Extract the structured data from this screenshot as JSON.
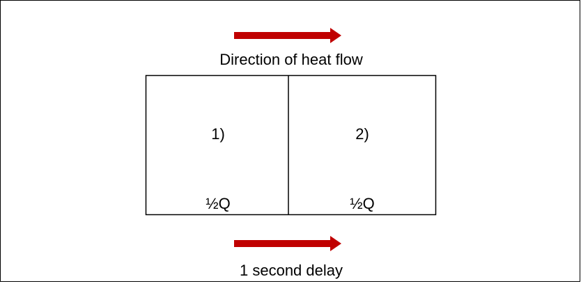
{
  "top_label": "Direction of heat flow",
  "boxes": [
    {
      "label": "1)",
      "content": "½Q"
    },
    {
      "label": "2)",
      "content": "½Q"
    }
  ],
  "bottom_label": "1 second delay"
}
